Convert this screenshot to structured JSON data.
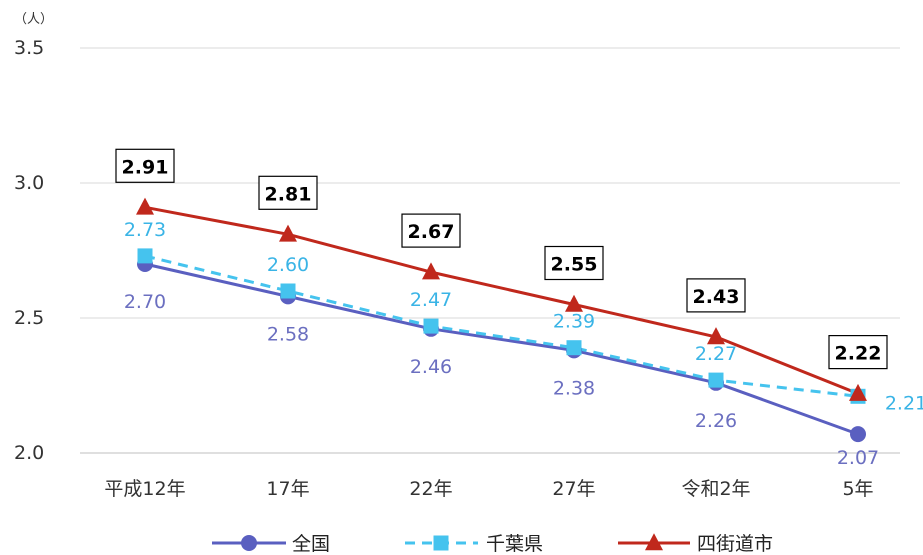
{
  "colors": {
    "zenkoku": "#5a5fc0",
    "chiba": "#45c3ee",
    "yotsukaido": "#c0281c",
    "grid": "#d9d9d9"
  },
  "chart_data": {
    "type": "line",
    "unit_label": "（人）",
    "categories": [
      "平成12年",
      "17年",
      "22年",
      "27年",
      "令和2年",
      "5年"
    ],
    "ylim": [
      2.0,
      3.5
    ],
    "yticks": [
      "2.0",
      "2.5",
      "3.0",
      "3.5"
    ],
    "grid": "horizontal",
    "legend_position": "bottom",
    "series": [
      {
        "name": "全国",
        "marker": "circle",
        "line": "solid",
        "values": [
          2.7,
          2.58,
          2.46,
          2.38,
          2.26,
          2.07
        ],
        "labels": [
          "2.70",
          "2.58",
          "2.46",
          "2.38",
          "2.26",
          "2.07"
        ]
      },
      {
        "name": "千葉県",
        "marker": "square",
        "line": "dashed",
        "values": [
          2.73,
          2.6,
          2.47,
          2.39,
          2.27,
          2.21
        ],
        "labels": [
          "2.73",
          "2.60",
          "2.47",
          "2.39",
          "2.27",
          "2.21"
        ]
      },
      {
        "name": "四街道市",
        "marker": "triangle",
        "line": "solid",
        "values": [
          2.91,
          2.81,
          2.67,
          2.55,
          2.43,
          2.22
        ],
        "labels": [
          "2.91",
          "2.81",
          "2.67",
          "2.55",
          "2.43",
          "2.22"
        ]
      }
    ]
  }
}
